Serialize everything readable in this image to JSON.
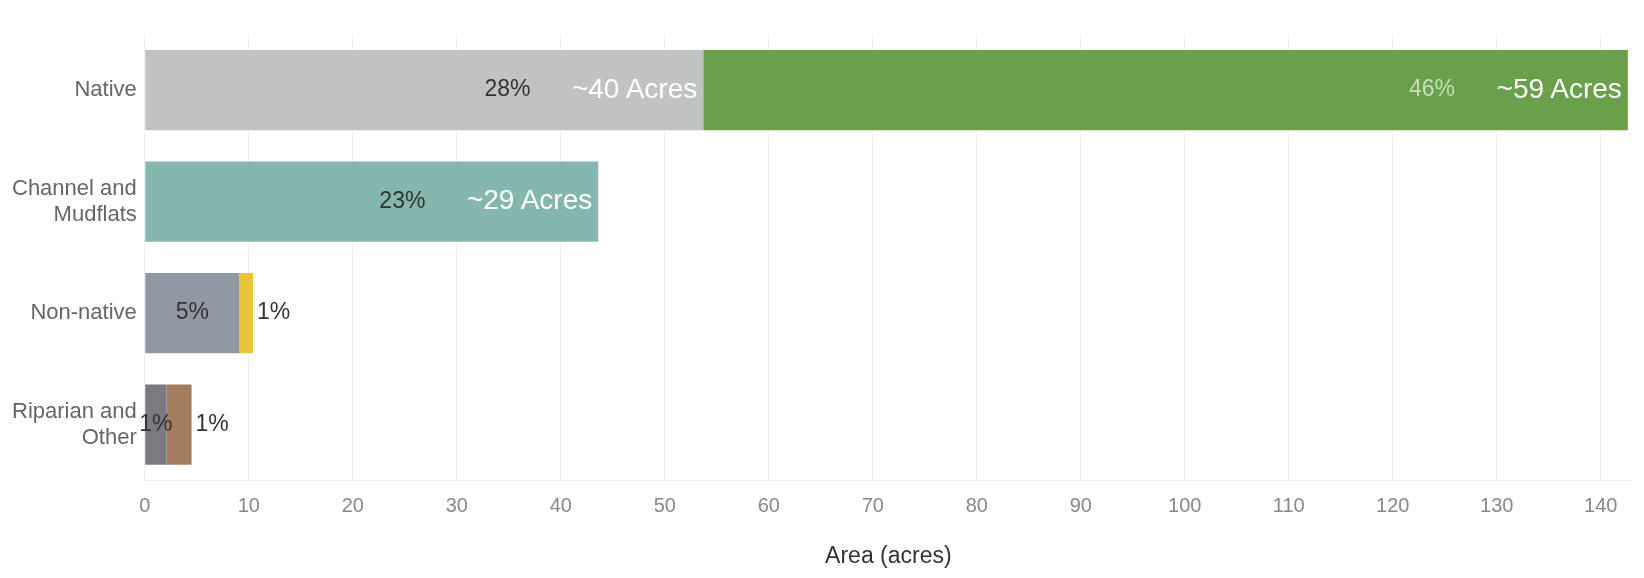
{
  "chart_data": {
    "type": "bar",
    "orientation": "horizontal",
    "stacked": true,
    "xlabel": "Area (acres)",
    "categories": [
      "Native",
      "Channel and Mudflats",
      "Non-native",
      "Riparian and Other"
    ],
    "series": [
      {
        "values": [
          53.7,
          43.6,
          9.1,
          2.1
        ],
        "colors": [
          "#c0c2c4",
          "#85b7ae",
          "#8f98a3",
          "#7a7b80"
        ]
      },
      {
        "values": [
          88.9,
          null,
          1.3,
          2.4
        ],
        "colors": [
          "#6a9f4b",
          "#85b7ae",
          "#e8c43a",
          "#a57d5c"
        ]
      }
    ],
    "annotations": [
      "28%",
      "46%",
      "23%",
      "5%",
      "1%",
      "1%",
      "1%",
      {
        "text": "~40 Acres",
        "x": 53.7,
        "y": "Native"
      },
      {
        "text": "~59 Acres",
        "x": 142.6,
        "y": "Native"
      },
      {
        "text": "~29 Acres",
        "x": 43.6,
        "y": "Channel and Mudflats"
      }
    ],
    "xlim": [
      0,
      143
    ],
    "xticks": [
      0,
      10,
      20,
      30,
      40,
      50,
      60,
      70,
      80,
      90,
      100,
      110,
      120,
      130,
      140
    ],
    "grid": "x",
    "legend": false
  }
}
